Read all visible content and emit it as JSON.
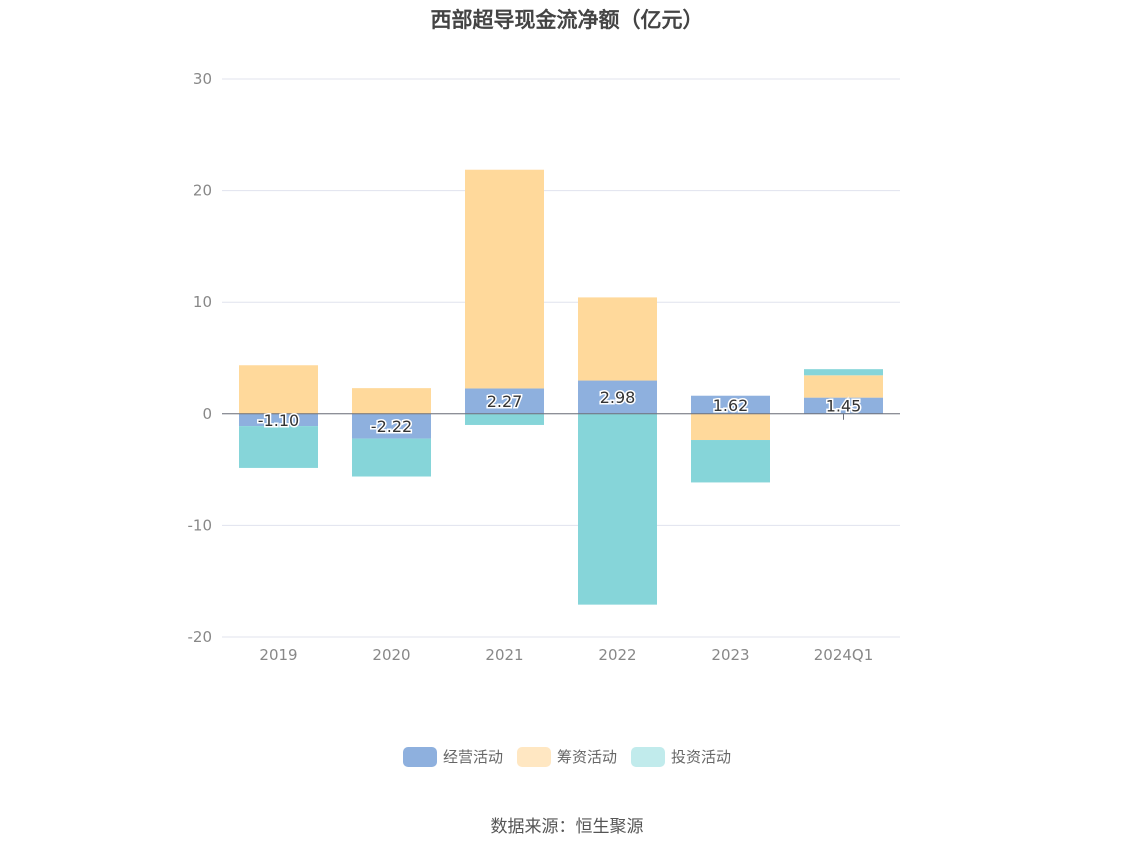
{
  "chart_data": {
    "type": "bar",
    "title": "西部超导现金流净额（亿元）",
    "categories": [
      "2019",
      "2020",
      "2021",
      "2022",
      "2023",
      "2024Q1"
    ],
    "series": [
      {
        "name": "经营活动",
        "color": "#8EB0DE",
        "values": [
          -1.1,
          -2.22,
          2.27,
          2.98,
          1.62,
          1.45
        ]
      },
      {
        "name": "筹资活动",
        "color": "#FFD99B",
        "values": [
          4.35,
          2.3,
          19.6,
          7.45,
          -2.35,
          2.0
        ]
      },
      {
        "name": "投资活动",
        "color": "#86D5D9",
        "values": [
          -3.75,
          -3.4,
          -1.0,
          -17.1,
          -3.8,
          0.55
        ]
      }
    ],
    "data_labels": [
      "-1.10",
      "-2.22",
      "2.27",
      "2.98",
      "1.62",
      "1.45"
    ],
    "ylim": [
      -20,
      30
    ],
    "yticks": [
      "30",
      "20",
      "10",
      "0",
      "-10",
      "-20"
    ],
    "ytick_values": [
      30,
      20,
      10,
      0,
      -10,
      -20
    ],
    "grid": true,
    "legend_position": "bottom",
    "stacked": true
  },
  "legend": [
    {
      "label": "经营活动",
      "color": "#8EB0DE"
    },
    {
      "label": "筹资活动",
      "color": "#FFE7C2"
    },
    {
      "label": "投资活动",
      "color": "#C1EBEC"
    }
  ],
  "source": "数据来源：恒生聚源"
}
